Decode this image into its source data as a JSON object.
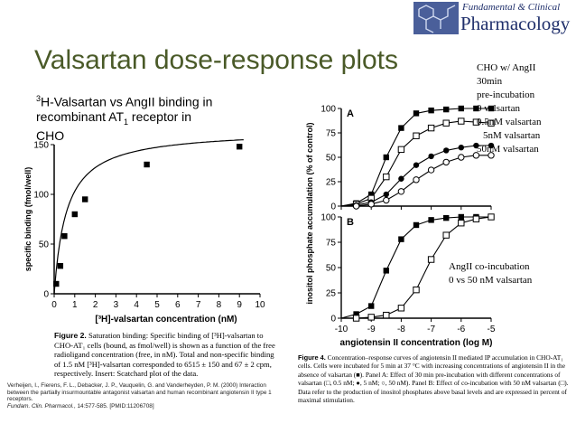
{
  "slide": {
    "title": "Valsartan dose-response plots",
    "subtitle_pre": "3",
    "subtitle_line1": "H-Valsartan vs AngII binding in",
    "subtitle_line2a": "recombinant AT",
    "subtitle_line2sub": "1",
    "subtitle_line2b": " receptor in",
    "subtitle_line3": "CHO",
    "legend_top": [
      "CHO w/ AngII",
      "30min",
      "pre-incubation",
      "0 valsartan",
      "0.5nM valsartan",
      "5nM valsartan",
      "50nM valsartan"
    ],
    "legend_bottom": [
      "AngII co-incubation",
      "0 vs 50 nM valsartan"
    ],
    "citation": "Verheijen, I., Fierens, F. L., Debacker, J. P., Vauquelin, G. and Vanderheyden, P. M. (2000) Interaction between the partially insurmountable antagonist valsartan and human recombinant angiotensin II type 1 receptors.",
    "citation_journal": "Fundam. Clin. Pharmacol.",
    "citation_tail": ", 14:577-585. [PMID:11206708]"
  },
  "journal": {
    "line1": "Fundamental & Clinical",
    "line2": "Pharmacology"
  },
  "figure2": {
    "caption_label": "Figure 2.",
    "caption_text": "Saturation binding: Specific binding of [³H]-valsartan to CHO-AT₁ cells (bound, as fmol/well) is shown as a function of the free radioligand concentration (free, in nM). Total and non-specific binding of 1.5 nM [³H]-valsartan corresponded to 6515 ± 150 and 67 ± 2 cpm, respectively. Insert: Scatchard plot of the data."
  },
  "figure4": {
    "caption_label": "Figure 4.",
    "caption_text": "Concentration–response curves of angiotensin II mediated IP accumulation in CHO-AT₁ cells. Cells were incubated for 5 min at 37 °C with increasing concentrations of angiotensin II in the absence of valsartan (■). Panel A: Effect of 30 min pre-incubation with different concentrations of valsartan (□, 0.5 nM; ●, 5 nM; ○, 50 nM). Panel B: Effect of co-incubation with 50 nM valsartan (□). Data refer to the production of inositol phosphates above basal levels and are expressed in percent of maximal stimulation."
  },
  "chart_data": [
    {
      "type": "scatter",
      "title": "",
      "xlabel": "[³H]-valsartan concentration (nM)",
      "ylabel": "specific binding (fmol/well)",
      "xlim": [
        0,
        10
      ],
      "ylim": [
        0,
        150
      ],
      "xticks": [
        "0",
        "1",
        "2",
        "3",
        "4",
        "5",
        "6",
        "7",
        "8",
        "9",
        "10"
      ],
      "yticks": [
        "0",
        "50",
        "100",
        "150"
      ],
      "grid": false,
      "series": [
        {
          "marker": "filled-square",
          "x": [
            0.1,
            0.3,
            0.5,
            1.0,
            1.5,
            4.5,
            9.0
          ],
          "y": [
            10,
            28,
            58,
            80,
            95,
            130,
            148
          ]
        }
      ],
      "fit_curve": {
        "Bmax": 165,
        "Kd": 0.6
      }
    },
    {
      "type": "line",
      "panel": "A",
      "title": "",
      "xlabel": "",
      "ylabel": "inositol phosphate accumulation (% of control)",
      "xlim": [
        -10,
        -5
      ],
      "ylim": [
        0,
        100
      ],
      "yticks": [
        "0",
        "25",
        "50",
        "75",
        "100"
      ],
      "x": [
        -10,
        -9.5,
        -9,
        -8.5,
        -8,
        -7.5,
        -7,
        -6.5,
        -6,
        -5.5,
        -5
      ],
      "series": [
        {
          "marker": "filled-square",
          "y": [
            0,
            3,
            12,
            50,
            80,
            95,
            98,
            99,
            100,
            100,
            100
          ]
        },
        {
          "marker": "open-square",
          "y": [
            0,
            2,
            8,
            30,
            58,
            72,
            80,
            85,
            87,
            86,
            85
          ]
        },
        {
          "marker": "filled-circle",
          "y": [
            0,
            1,
            4,
            12,
            28,
            42,
            51,
            57,
            60,
            62,
            62
          ]
        },
        {
          "marker": "open-circle",
          "y": [
            0,
            0,
            2,
            6,
            15,
            27,
            37,
            45,
            50,
            52,
            52
          ]
        }
      ]
    },
    {
      "type": "line",
      "panel": "B",
      "title": "",
      "xlabel": "angiotensin II concentration (log M)",
      "ylabel": "",
      "xlim": [
        -10,
        -5
      ],
      "ylim": [
        0,
        100
      ],
      "xticks": [
        "-10",
        "-9",
        "-8",
        "-7",
        "-6",
        "-5"
      ],
      "yticks": [
        "0",
        "25",
        "50",
        "75",
        "100"
      ],
      "x": [
        -10,
        -9.5,
        -9,
        -8.5,
        -8,
        -7.5,
        -7,
        -6.5,
        -6,
        -5.5,
        -5
      ],
      "series": [
        {
          "marker": "filled-square",
          "y": [
            0,
            4,
            12,
            47,
            78,
            92,
            97,
            99,
            100,
            100,
            100
          ]
        },
        {
          "marker": "open-square",
          "y": [
            0,
            0,
            1,
            3,
            10,
            28,
            58,
            82,
            94,
            98,
            100
          ]
        }
      ]
    }
  ]
}
